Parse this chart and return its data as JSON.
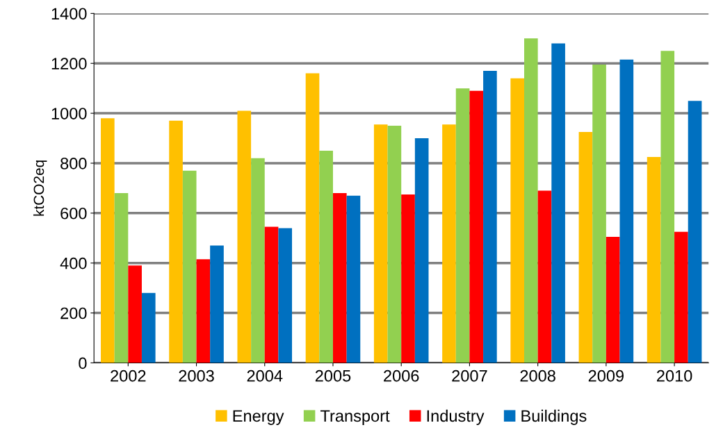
{
  "chart_data": {
    "type": "bar",
    "ylabel": "ktCO2eq",
    "categories": [
      "2002",
      "2003",
      "2004",
      "2005",
      "2006",
      "2007",
      "2008",
      "2009",
      "2010"
    ],
    "series": [
      {
        "name": "Energy",
        "color": "#ffc000",
        "values": [
          980,
          970,
          1010,
          1160,
          955,
          955,
          1140,
          925,
          825
        ]
      },
      {
        "name": "Transport",
        "color": "#92d050",
        "values": [
          680,
          770,
          820,
          850,
          950,
          1100,
          1300,
          1195,
          1250
        ]
      },
      {
        "name": "Industry",
        "color": "#ff0000",
        "values": [
          390,
          415,
          545,
          680,
          675,
          1090,
          690,
          505,
          525
        ]
      },
      {
        "name": "Buildings",
        "color": "#0070c0",
        "values": [
          280,
          470,
          540,
          670,
          900,
          1170,
          1280,
          1215,
          1050
        ]
      }
    ],
    "ylim": [
      0,
      1400
    ],
    "yticks": [
      0,
      200,
      400,
      600,
      800,
      1000,
      1200,
      1400
    ],
    "grid": "y",
    "legend": "bottom"
  }
}
